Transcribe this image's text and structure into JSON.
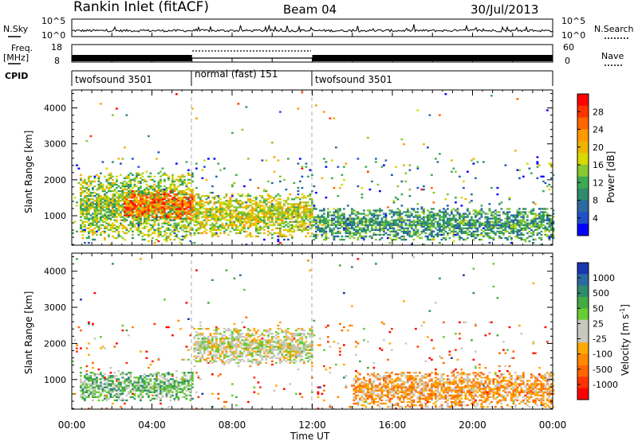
{
  "header": {
    "title": "Rankin Inlet (fitACF)",
    "beam": "Beam 04",
    "date": "30/Jul/2013"
  },
  "left_labels": {
    "nsky": "N.Sky",
    "freq": "Freq.",
    "freq_unit": "[MHz]",
    "cpid": "CPID"
  },
  "right_labels": {
    "nsearch": "N.Search",
    "nave": "Nave"
  },
  "noise_panel": {
    "left_ticks": [
      "10^5",
      "10^0"
    ],
    "right_ticks": [
      "10^5",
      "10^0"
    ]
  },
  "freq_panel": {
    "left_ticks": [
      "18",
      "8"
    ],
    "right_ticks": [
      "60",
      "0"
    ]
  },
  "cpid_segments": [
    {
      "label": "twofsound 3501",
      "start_hour": 0,
      "end_hour": 6
    },
    {
      "label": "normal (fast) 151",
      "start_hour": 6,
      "end_hour": 12
    },
    {
      "label": "twofsound 3501",
      "start_hour": 12,
      "end_hour": 24
    }
  ],
  "power_colorbar": {
    "label": "Power [dB]",
    "ticks": [
      "28",
      "24",
      "20",
      "16",
      "12",
      "8",
      "4"
    ],
    "colors": [
      "#ff0000",
      "#ff3300",
      "#ff6600",
      "#ff9900",
      "#f0b400",
      "#d8d800",
      "#88c830",
      "#3caa50",
      "#2e8b6e",
      "#2a6aa0",
      "#2050c8",
      "#0000ff"
    ]
  },
  "velocity_colorbar": {
    "label": "Velocity [m s",
    "label_exp": "-1",
    "label_close": "]",
    "ticks": [
      "1000",
      "500",
      "50",
      "25",
      "-25",
      "-100",
      "-500",
      "-1000"
    ],
    "colors": [
      "#1838b0",
      "#2a6aa0",
      "#2e8b6e",
      "#44aa44",
      "#66cc33",
      "#c8c8c0",
      "#c8c8c0",
      "#ffaa00",
      "#ff8800",
      "#ff6600",
      "#ff3300",
      "#ff0000"
    ]
  },
  "axes": {
    "ylabel": "Slant Range [km]",
    "xlabel": "Time UT",
    "yticks": [
      "4000",
      "3000",
      "2000",
      "1000"
    ],
    "xticks": [
      "00:00",
      "04:00",
      "08:00",
      "12:00",
      "16:00",
      "20:00",
      "00:00"
    ]
  },
  "chart_data": [
    {
      "type": "heatmap",
      "name": "Power",
      "title": "Rankin Inlet (fitACF)",
      "xlabel": "Time UT",
      "ylabel": "Slant Range [km]",
      "xlim_hours": [
        0,
        24
      ],
      "ylim_km": [
        180,
        4500
      ],
      "colorbar": "Power [dB]",
      "colorbar_range": [
        0,
        30
      ],
      "echo_bands": [
        {
          "start_hour": 0.3,
          "end_hour": 6,
          "range_km": [
            300,
            2200
          ],
          "typical_db": 14
        },
        {
          "start_hour": 2.5,
          "end_hour": 6,
          "range_km": [
            900,
            1700
          ],
          "typical_db": 24
        },
        {
          "start_hour": 6,
          "end_hour": 12,
          "range_km": [
            400,
            1600
          ],
          "typical_db": 16
        },
        {
          "start_hour": 12,
          "end_hour": 24,
          "range_km": [
            300,
            1200
          ],
          "typical_db": 10
        }
      ]
    },
    {
      "type": "heatmap",
      "name": "Velocity",
      "xlabel": "Time UT",
      "ylabel": "Slant Range [km]",
      "xlim_hours": [
        0,
        24
      ],
      "ylim_km": [
        180,
        4500
      ],
      "colorbar": "Velocity [m s-1]",
      "colorbar_range": [
        -1000,
        1000
      ],
      "echo_bands": [
        {
          "start_hour": 0.3,
          "end_hour": 6,
          "range_km": [
            400,
            1200
          ],
          "typical_ms": 300
        },
        {
          "start_hour": 6,
          "end_hour": 12,
          "range_km": [
            1400,
            2400
          ],
          "typical_ms": 0
        },
        {
          "start_hour": 14,
          "end_hour": 24,
          "range_km": [
            200,
            1200
          ],
          "typical_ms": -300
        }
      ]
    }
  ]
}
